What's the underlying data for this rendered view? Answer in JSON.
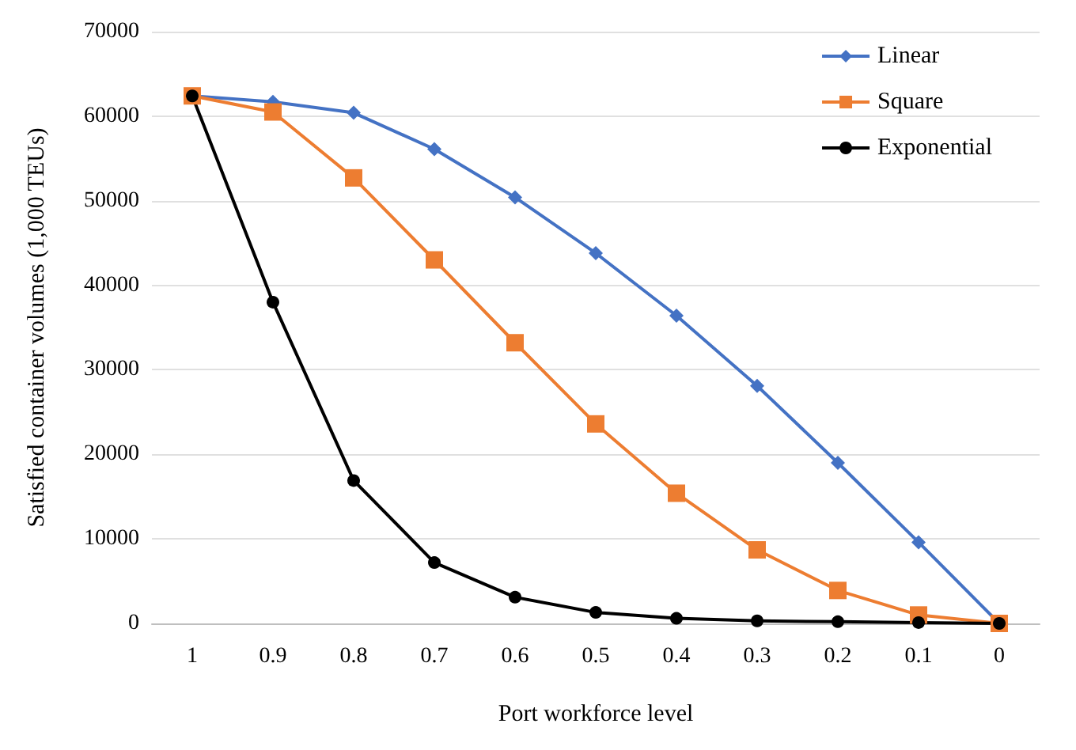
{
  "chart_data": {
    "type": "line",
    "xlabel": "Port workforce level",
    "ylabel": "Satisfied container volumes (1,000 TEUs)",
    "categories": [
      "1",
      "0.9",
      "0.8",
      "0.7",
      "0.6",
      "0.5",
      "0.4",
      "0.3",
      "0.2",
      "0.1",
      "0"
    ],
    "series": [
      {
        "name": "Linear",
        "color": "#4472c4",
        "marker": "diamond",
        "values": [
          62400,
          61700,
          60400,
          56100,
          50400,
          43800,
          36400,
          28100,
          19000,
          9600,
          0
        ]
      },
      {
        "name": "Square",
        "color": "#ed7d31",
        "marker": "square",
        "values": [
          62400,
          60500,
          52700,
          43000,
          33200,
          23600,
          15400,
          8700,
          3900,
          1000,
          0
        ]
      },
      {
        "name": "Exponential",
        "color": "#000000",
        "marker": "circle",
        "values": [
          62400,
          38000,
          16900,
          7200,
          3100,
          1300,
          600,
          300,
          200,
          100,
          0
        ]
      }
    ],
    "ylim": [
      0,
      70000
    ],
    "yticks": [
      0,
      10000,
      20000,
      30000,
      40000,
      50000,
      60000,
      70000
    ],
    "grid": "y",
    "legend": "top right"
  }
}
